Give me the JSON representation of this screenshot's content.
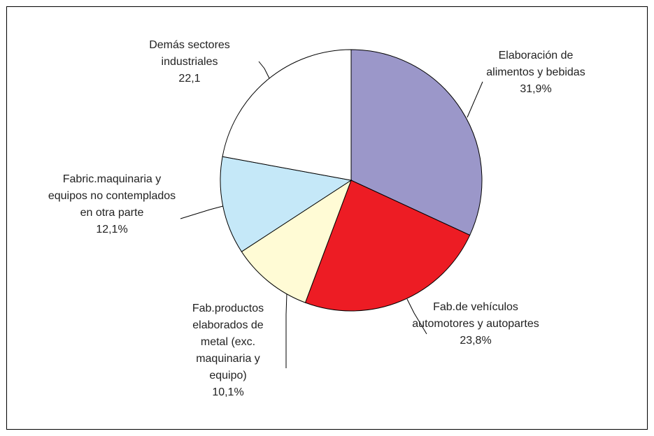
{
  "chart_data": {
    "type": "pie",
    "categories": [
      "Elaboración de alimentos y bebidas",
      "Fab.de vehículos automotores y autopartes",
      "Fab.productos elaborados de metal (exc. maquinaria y equipo)",
      "Fabric.maquinaria y equipos no contemplados en otra parte",
      "Demás sectores industriales"
    ],
    "values": [
      31.9,
      23.8,
      10.1,
      12.1,
      22.1
    ],
    "value_labels": [
      "31,9%",
      "23,8%",
      "10,1%",
      "12,1%",
      "22,1"
    ],
    "colors": [
      "#9b97c9",
      "#ed1c24",
      "#fffbd5",
      "#c5e8f8",
      "#ffffff"
    ]
  }
}
